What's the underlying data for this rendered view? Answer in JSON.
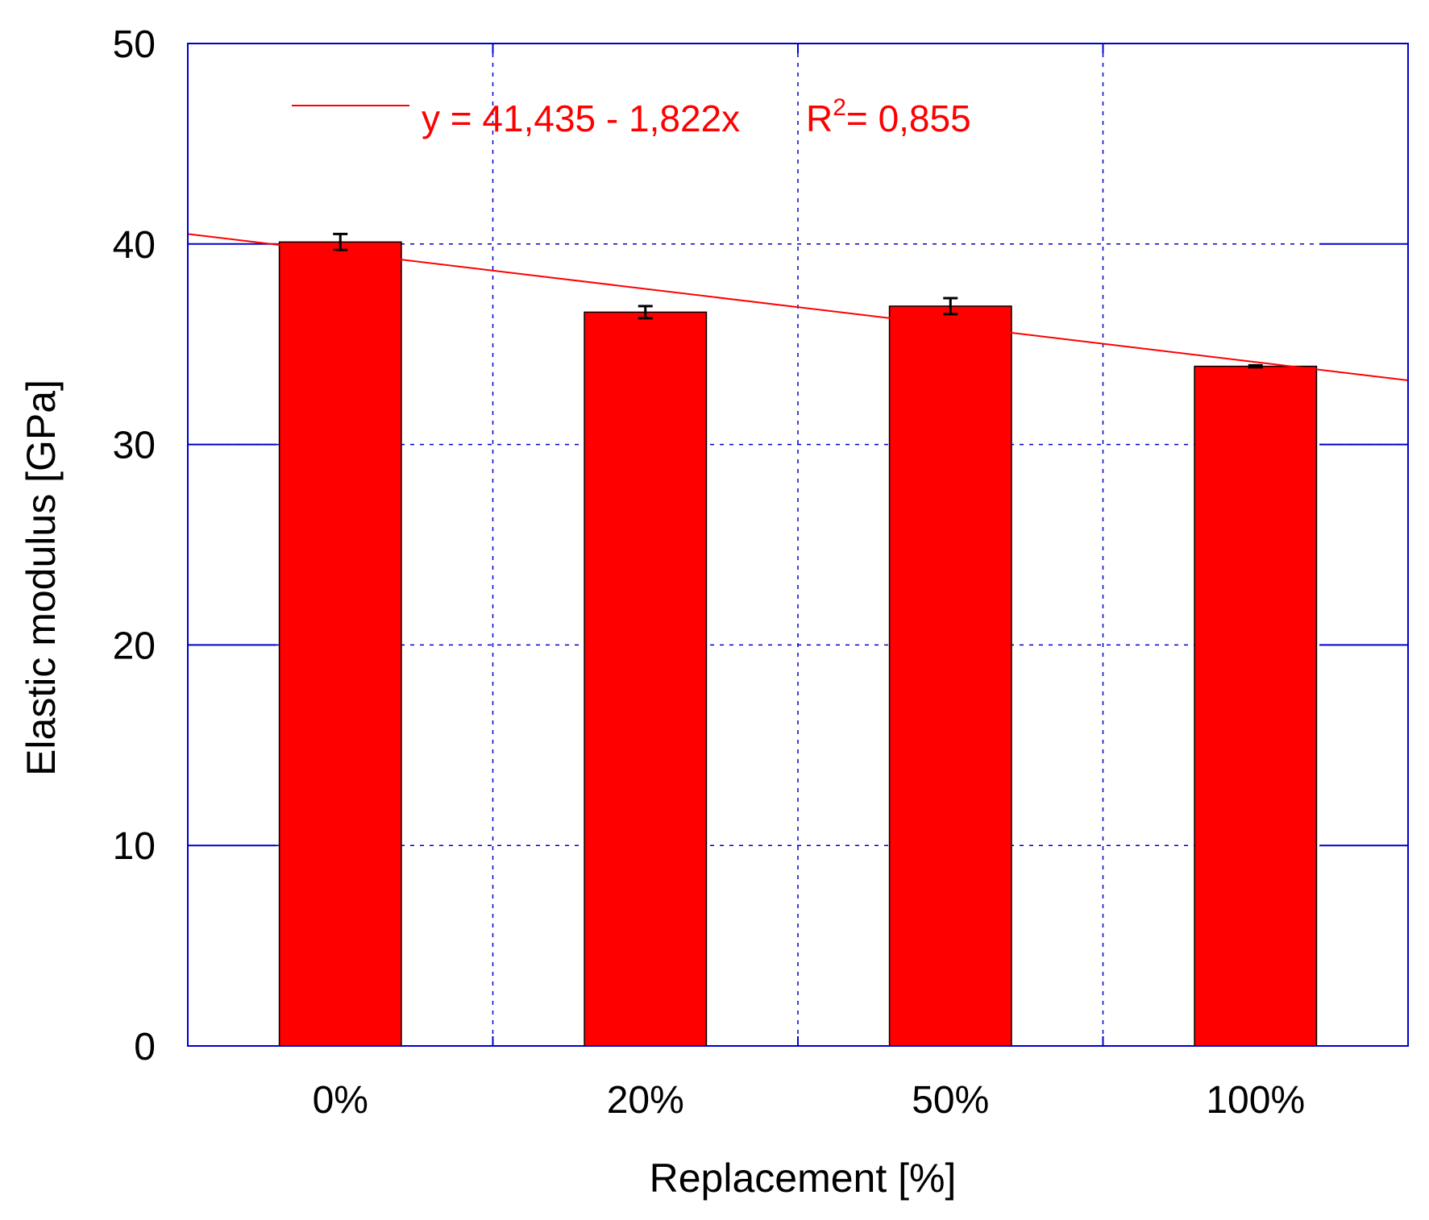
{
  "chart_data": {
    "type": "bar",
    "title": "",
    "categories": [
      "0%",
      "20%",
      "50%",
      "100%"
    ],
    "series": [
      {
        "values": [
          40.1,
          36.6,
          36.9,
          33.9
        ],
        "errors": [
          0.4,
          0.3,
          0.4,
          0.05
        ],
        "color": "#ff0000"
      }
    ],
    "xlabel": "Replacement [%]",
    "ylabel": "Elastic modulus [GPa]",
    "ylim": [
      0,
      50
    ],
    "yticks": [
      "0",
      "10",
      "20",
      "30",
      "40",
      "50"
    ],
    "grid": true,
    "grid_color": "#0000cc",
    "trendline": {
      "equation_text": "y = 41,435 - 1,822x",
      "r2_prefix": "R",
      "r2_sup": "2",
      "r2_suffix": "= 0,855",
      "color": "#ff0000",
      "y_at_left_edge": 40.5,
      "y_at_right_edge": 33.2
    },
    "legend_position": "top-left"
  }
}
